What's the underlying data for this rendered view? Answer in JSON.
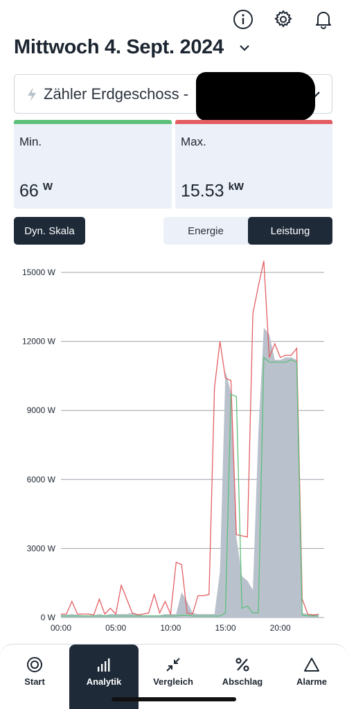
{
  "header": {
    "icons": [
      "info-icon",
      "gear-icon",
      "bell-icon"
    ],
    "date_title": "Mittwoch 4. Sept. 2024"
  },
  "meter": {
    "label": "Zähler Erdgeschoss - ",
    "icon": "bolt-icon"
  },
  "stats": {
    "min": {
      "label": "Min.",
      "value": "66",
      "unit": "W",
      "color": "#5cc07a"
    },
    "max": {
      "label": "Max.",
      "value": "15.53",
      "unit": "kW",
      "color": "#e35d61"
    }
  },
  "controls": {
    "dyn_scale_label": "Dyn. Skala",
    "tabs": [
      {
        "label": "Energie",
        "active": false
      },
      {
        "label": "Leistung",
        "active": true
      }
    ]
  },
  "chart_data": {
    "type": "area",
    "ylim": [
      0,
      15000
    ],
    "y_ticks": [
      0,
      3000,
      6000,
      9000,
      12000,
      15000
    ],
    "y_tick_labels": [
      "0 W",
      "3000 W",
      "6000 W",
      "9000 W",
      "12000 W",
      "15000 W"
    ],
    "x_ticks": [
      0,
      5,
      10,
      15,
      20
    ],
    "x_tick_labels": [
      "00:00",
      "05:00",
      "10:00",
      "15:00",
      "20:00"
    ],
    "grid": true,
    "colors": {
      "avg": "#b9c1cc",
      "max": "#e35d61",
      "min": "#5cc07a"
    },
    "series": [
      {
        "key": "avg",
        "x": [
          0,
          0.5,
          1,
          1.5,
          2,
          2.5,
          3,
          3.5,
          4,
          4.5,
          5,
          5.5,
          6,
          6.5,
          7,
          7.5,
          8,
          8.5,
          9,
          9.5,
          10,
          10.5,
          11,
          11.5,
          12,
          12.5,
          13,
          13.5,
          14,
          14.5,
          15,
          15.5,
          16,
          16.5,
          17,
          17.5,
          18,
          18.5,
          19,
          19.5,
          20,
          20.5,
          21,
          21.5,
          22,
          22.5,
          23,
          23.5
        ],
        "values": [
          120,
          120,
          150,
          120,
          100,
          100,
          100,
          150,
          100,
          150,
          150,
          150,
          150,
          200,
          150,
          100,
          100,
          100,
          100,
          150,
          150,
          150,
          1100,
          700,
          200,
          150,
          150,
          150,
          150,
          2000,
          10700,
          9800,
          3500,
          1800,
          1600,
          1200,
          8000,
          12600,
          12300,
          11200,
          11200,
          11300,
          11300,
          11200,
          200,
          150,
          150,
          150
        ]
      },
      {
        "key": "max",
        "x": [
          0,
          0.5,
          1,
          1.5,
          2,
          2.5,
          3,
          3.5,
          4,
          4.5,
          5,
          5.5,
          6,
          6.5,
          7,
          7.5,
          8,
          8.5,
          9,
          9.5,
          10,
          10.5,
          11,
          11.5,
          12,
          12.5,
          13,
          13.5,
          14,
          14.5,
          15,
          15.5,
          16,
          16.5,
          17,
          17.5,
          18,
          18.5,
          19,
          19.5,
          20,
          20.5,
          21,
          21.5,
          22,
          22.5,
          23,
          23.5
        ],
        "values": [
          150,
          150,
          700,
          150,
          150,
          150,
          120,
          800,
          150,
          400,
          150,
          1400,
          800,
          200,
          120,
          150,
          200,
          1000,
          200,
          700,
          150,
          2400,
          2300,
          200,
          150,
          950,
          950,
          1000,
          10000,
          12000,
          10400,
          10300,
          3600,
          3550,
          3500,
          13200,
          14400,
          15500,
          11300,
          11900,
          11300,
          11400,
          11400,
          11700,
          800,
          150,
          100,
          150
        ]
      },
      {
        "key": "min",
        "x": [
          0,
          0.5,
          1,
          1.5,
          2,
          2.5,
          3,
          3.5,
          4,
          4.5,
          5,
          5.5,
          6,
          6.5,
          7,
          7.5,
          8,
          8.5,
          9,
          9.5,
          10,
          10.5,
          11,
          11.5,
          12,
          12.5,
          13,
          13.5,
          14,
          14.5,
          15,
          15.5,
          16,
          16.5,
          17,
          17.5,
          18,
          18.5,
          19,
          19.5,
          20,
          20.5,
          21,
          21.5,
          22,
          22.5,
          23,
          23.5
        ],
        "values": [
          66,
          66,
          66,
          66,
          66,
          66,
          66,
          66,
          66,
          66,
          66,
          66,
          66,
          66,
          66,
          66,
          66,
          66,
          66,
          66,
          66,
          66,
          100,
          100,
          66,
          66,
          66,
          66,
          66,
          66,
          200,
          9700,
          9600,
          400,
          500,
          200,
          200,
          11300,
          11100,
          11100,
          11100,
          11100,
          11200,
          11100,
          100,
          80,
          66,
          66
        ]
      }
    ]
  },
  "nav": {
    "items": [
      {
        "label": "Start",
        "icon": "target-icon",
        "active": false
      },
      {
        "label": "Analytik",
        "icon": "bar-chart-icon",
        "active": true
      },
      {
        "label": "Vergleich",
        "icon": "compress-arrows-icon",
        "active": false
      },
      {
        "label": "Abschlag",
        "icon": "percent-icon",
        "active": false
      },
      {
        "label": "Alarme",
        "icon": "triangle-alert-icon",
        "active": false
      }
    ]
  }
}
